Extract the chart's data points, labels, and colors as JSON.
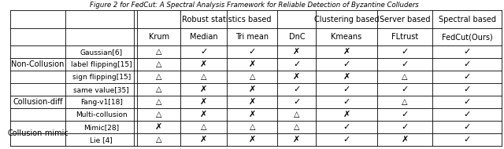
{
  "title": "Figure 2 for FedCut: A Spectral Analysis Framework for Reliable Detection of Byzantine Colluders",
  "col_group_labels": [
    "Robust statistics based",
    "Clustering based",
    "Server based",
    "Spectral based"
  ],
  "col_headers": [
    "Krum",
    "Median",
    "Tri mean",
    "DnC",
    "Kmeans",
    "FLtrust",
    "FedCut(Ours)"
  ],
  "row_groups": [
    {
      "label": "Non-Collusion",
      "rows": 3
    },
    {
      "label": "Collusion-diff",
      "rows": 3
    },
    {
      "label": "Collusion-mimic",
      "rows": 2
    }
  ],
  "row_labels": [
    "Gaussian[6]",
    "label flipping[15]",
    "sign flipping[15]",
    "same value[35]",
    "Fang-v1[18]",
    "Multi-collusion",
    "Mimic[28]",
    "Lie [4]"
  ],
  "cell_data": [
    [
      "△",
      "✓",
      "✓",
      "✗",
      "✗",
      "✓",
      "✓"
    ],
    [
      "△",
      "✗",
      "✗",
      "✓",
      "✓",
      "✓",
      "✓"
    ],
    [
      "△",
      "△",
      "△",
      "✗",
      "✗",
      "△",
      "✓"
    ],
    [
      "△",
      "✗",
      "✗",
      "✓",
      "✓",
      "✓",
      "✓"
    ],
    [
      "△",
      "✗",
      "✗",
      "✓",
      "✓",
      "△",
      "✓"
    ],
    [
      "△",
      "✗",
      "✗",
      "△",
      "✗",
      "✓",
      "✓"
    ],
    [
      "✗",
      "△",
      "△",
      "△",
      "✓",
      "✓",
      "✓"
    ],
    [
      "△",
      "✗",
      "✗",
      "✗",
      "✓",
      "✗",
      "✓"
    ]
  ],
  "bg_color": "#ffffff",
  "line_color": "#000000",
  "font_size": 7.0,
  "header_font_size": 7.0,
  "group_font_size": 7.0
}
